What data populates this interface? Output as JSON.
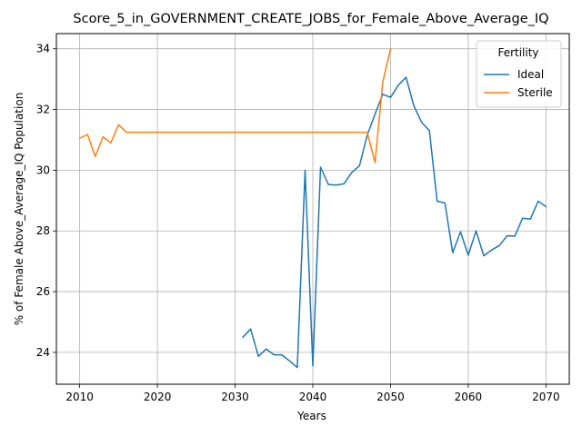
{
  "chart_data": {
    "type": "line",
    "title": "Score_5_in_GOVERNMENT_CREATE_JOBS_for_Female_Above_Average_IQ",
    "xlabel": "Years",
    "ylabel": "% of Female Above_Average_IQ Population",
    "xlim": [
      2007,
      2073
    ],
    "ylim": [
      22.95,
      34.5
    ],
    "xticks": [
      2010,
      2020,
      2030,
      2040,
      2050,
      2060,
      2070
    ],
    "yticks": [
      24,
      26,
      28,
      30,
      32,
      34
    ],
    "grid": true,
    "legend": {
      "title": "Fertility",
      "position": "top-right"
    },
    "series": [
      {
        "name": "Ideal",
        "color": "#1f77b4",
        "x": [
          2031,
          2032,
          2033,
          2034,
          2035,
          2036,
          2037,
          2038,
          2039,
          2040,
          2041,
          2042,
          2043,
          2044,
          2045,
          2046,
          2047,
          2048,
          2049,
          2050,
          2051,
          2052,
          2053,
          2054,
          2055,
          2056,
          2057,
          2058,
          2059,
          2060,
          2061,
          2062,
          2063,
          2064,
          2065,
          2066,
          2067,
          2068,
          2069,
          2070
        ],
        "y": [
          24.5,
          24.77,
          23.87,
          24.11,
          23.92,
          23.92,
          23.72,
          23.5,
          30.0,
          23.55,
          30.1,
          29.53,
          29.51,
          29.55,
          29.92,
          30.15,
          31.15,
          31.85,
          32.5,
          32.4,
          32.8,
          33.06,
          32.12,
          31.58,
          31.3,
          28.98,
          28.92,
          27.28,
          27.97,
          27.2,
          28.0,
          27.18,
          27.37,
          27.52,
          27.84,
          27.83,
          28.42,
          28.39,
          28.98,
          28.8
        ]
      },
      {
        "name": "Sterile",
        "color": "#ff7f0e",
        "x": [
          2010,
          2011,
          2012,
          2013,
          2014,
          2015,
          2016,
          2017,
          2018,
          2019,
          2020,
          2021,
          2022,
          2023,
          2024,
          2025,
          2026,
          2027,
          2028,
          2029,
          2030,
          2031,
          2032,
          2033,
          2034,
          2035,
          2036,
          2037,
          2038,
          2039,
          2040,
          2041,
          2042,
          2043,
          2044,
          2045,
          2046,
          2047,
          2048,
          2049,
          2050
        ],
        "y": [
          31.05,
          31.18,
          30.45,
          31.1,
          30.9,
          31.5,
          31.25,
          31.25,
          31.25,
          31.25,
          31.25,
          31.25,
          31.25,
          31.25,
          31.25,
          31.25,
          31.25,
          31.25,
          31.25,
          31.25,
          31.25,
          31.25,
          31.25,
          31.25,
          31.25,
          31.25,
          31.25,
          31.25,
          31.25,
          31.25,
          31.25,
          31.25,
          31.25,
          31.25,
          31.25,
          31.25,
          31.25,
          31.25,
          30.25,
          32.9,
          34.0
        ]
      }
    ]
  }
}
